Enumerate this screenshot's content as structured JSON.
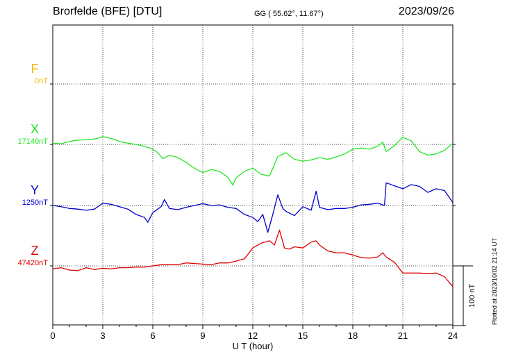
{
  "header": {
    "station": "Brorfelde (BFE)  [DTU]",
    "coords": "GG ( 55.62°,  11.67°)",
    "date": "2023/09/26"
  },
  "side_note": "Plotted at 2023/10/02 21:14 UT",
  "colors": {
    "F": "#f2b705",
    "X": "#22e622",
    "Y": "#0000cc",
    "Z": "#e00000"
  },
  "chart_data": {
    "type": "line",
    "xlabel": "U T (hour)",
    "xlim": [
      0,
      24
    ],
    "xticks": [
      0,
      3,
      6,
      9,
      12,
      15,
      18,
      21,
      24
    ],
    "scale_bar": "100 nT",
    "series": [
      {
        "name": "F",
        "baseline": "0nT",
        "x": [],
        "values": []
      },
      {
        "name": "X",
        "baseline": "17140nT",
        "x": [
          0,
          0.5,
          1,
          1.5,
          2,
          2.5,
          3,
          3.5,
          4,
          4.5,
          5,
          5.5,
          6,
          6.3,
          6.6,
          7,
          7.5,
          8,
          8.5,
          9,
          9.5,
          10,
          10.5,
          10.8,
          11,
          11.5,
          12,
          12.5,
          13,
          13.2,
          13.5,
          14,
          14.5,
          15,
          15.5,
          16,
          16.5,
          17,
          17.5,
          18,
          18.5,
          19,
          19.5,
          19.8,
          20,
          20.5,
          21,
          21.5,
          22,
          22.5,
          23,
          23.5,
          24
        ],
        "values": [
          2,
          1,
          5,
          7,
          8,
          9,
          13,
          10,
          5,
          2,
          0,
          -3,
          -8,
          -14,
          -24,
          -18,
          -22,
          -30,
          -40,
          -47,
          -42,
          -45,
          -55,
          -68,
          -56,
          -45,
          -40,
          -50,
          -53,
          -40,
          -20,
          -14,
          -25,
          -28,
          -26,
          -22,
          -25,
          -21,
          -16,
          -8,
          -6,
          -8,
          -3,
          4,
          -12,
          -2,
          12,
          6,
          -12,
          -18,
          -16,
          -10,
          2
        ]
      },
      {
        "name": "Y",
        "baseline": "1250nT",
        "x": [
          0,
          0.5,
          1,
          1.5,
          2,
          2.5,
          3,
          3.5,
          4,
          4.5,
          5,
          5.5,
          5.7,
          6,
          6.5,
          6.7,
          7,
          7.5,
          8,
          8.5,
          9,
          9.5,
          10,
          10.5,
          11,
          11.5,
          12,
          12.3,
          12.6,
          12.9,
          13.2,
          13.5,
          13.8,
          14,
          14.5,
          15,
          15.5,
          15.8,
          16,
          16.5,
          17,
          17.5,
          18,
          18.5,
          19,
          19.5,
          19.9,
          20,
          20.5,
          21,
          21.5,
          22,
          22.5,
          23,
          23.5,
          24
        ],
        "values": [
          0,
          -2,
          -5,
          -6,
          -8,
          -6,
          4,
          2,
          -2,
          -6,
          -15,
          -20,
          -28,
          -12,
          -2,
          10,
          -5,
          -7,
          -3,
          0,
          3,
          0,
          1,
          -3,
          -5,
          -15,
          -20,
          -27,
          -15,
          -45,
          -15,
          18,
          -5,
          -10,
          -17,
          -2,
          -8,
          24,
          -3,
          -7,
          -5,
          -5,
          -3,
          1,
          2,
          4,
          0,
          38,
          33,
          28,
          35,
          32,
          22,
          28,
          25,
          5
        ]
      },
      {
        "name": "Z",
        "baseline": "47420nT",
        "x": [
          0,
          0.5,
          1,
          1.5,
          2,
          2.5,
          3,
          3.5,
          4,
          4.5,
          5,
          5.5,
          6,
          6.5,
          7,
          7.5,
          8,
          8.5,
          9,
          9.5,
          10,
          10.5,
          11,
          11.5,
          12,
          12.5,
          13,
          13.3,
          13.6,
          13.9,
          14.2,
          14.5,
          15,
          15.5,
          15.8,
          16,
          16.5,
          17,
          17.5,
          18,
          18.5,
          19,
          19.5,
          19.8,
          20,
          20.5,
          21,
          21.5,
          22,
          22.5,
          23,
          23.5,
          24
        ],
        "values": [
          -5,
          -3,
          -7,
          -8,
          -3,
          -6,
          -4,
          -5,
          -3,
          -3,
          -2,
          -2,
          0,
          2,
          2,
          2,
          5,
          4,
          3,
          2,
          5,
          5,
          8,
          12,
          30,
          38,
          42,
          35,
          60,
          30,
          28,
          32,
          30,
          40,
          42,
          35,
          25,
          22,
          22,
          18,
          14,
          13,
          15,
          22,
          15,
          6,
          -12,
          -12,
          -12,
          -13,
          -12,
          -18,
          -35
        ]
      }
    ]
  }
}
